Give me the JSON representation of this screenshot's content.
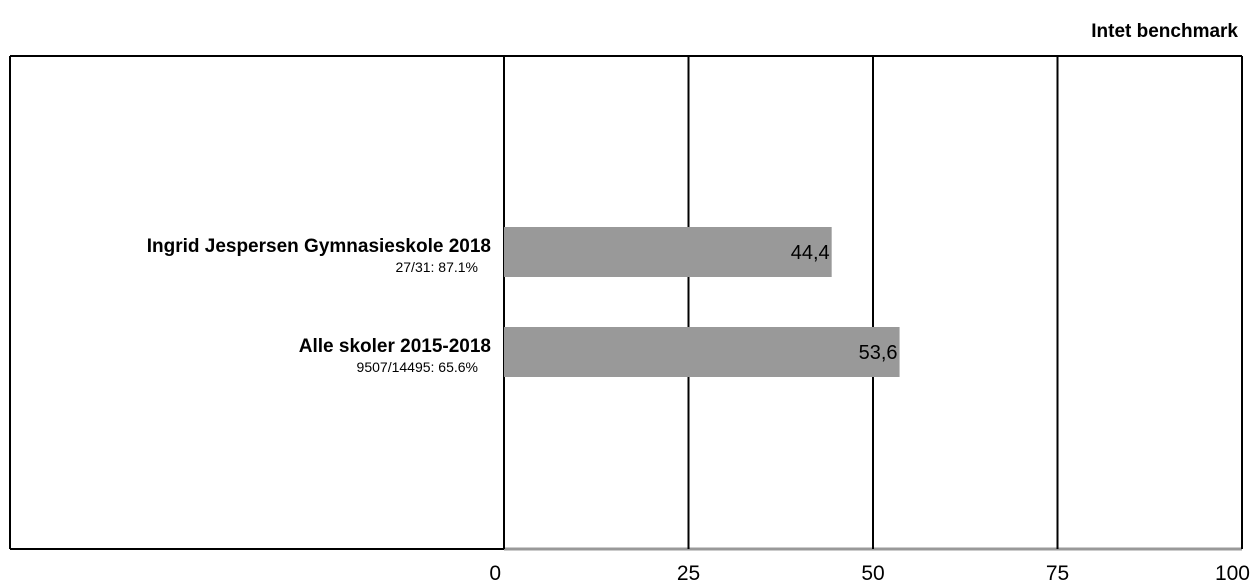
{
  "header": {
    "benchmark_label": "Intet benchmark"
  },
  "chart_data": {
    "type": "bar",
    "orientation": "horizontal",
    "categories": [
      "Ingrid Jespersen Gymnasieskole 2018",
      "Alle skoler 2015-2018"
    ],
    "category_sublabels": [
      "27/31: 87.1%",
      "9507/14495: 65.6%"
    ],
    "values": [
      44.4,
      53.6
    ],
    "value_labels": [
      "44,4",
      "53,6"
    ],
    "xlim": [
      0,
      100
    ],
    "x_ticks": [
      0,
      25,
      50,
      75,
      100
    ],
    "x_tick_labels": [
      "0",
      "25",
      "50",
      "75",
      "100"
    ],
    "grid": true,
    "bar_color": "#999999",
    "title": "",
    "xlabel": "",
    "ylabel": ""
  }
}
